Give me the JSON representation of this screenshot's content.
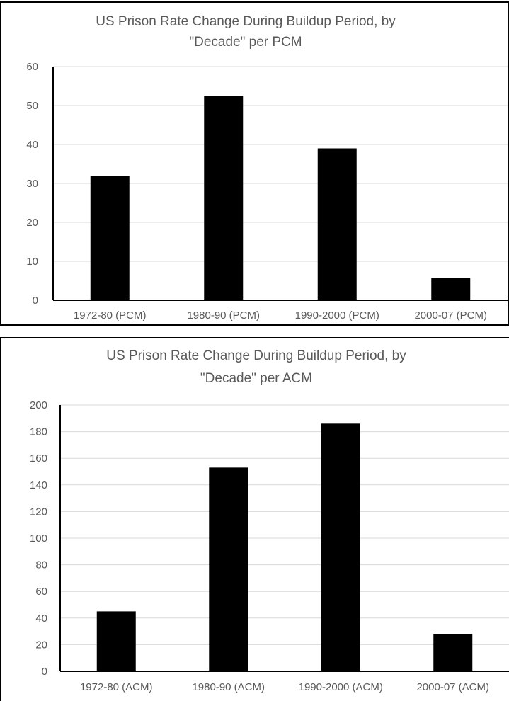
{
  "chart_data": [
    {
      "type": "bar",
      "title": "US Prison Rate Change During Buildup Period, by \"Decade\" per PCM",
      "title_lines": [
        "US Prison Rate Change During Buildup Period, by",
        "\"Decade\" per PCM"
      ],
      "categories": [
        "1972-80 (PCM)",
        "1980-90 (PCM)",
        "1990-2000 (PCM)",
        "2000-07 (PCM)"
      ],
      "values": [
        32,
        52.5,
        39,
        5.7
      ],
      "ylim": [
        0,
        60
      ],
      "yticks": [
        0,
        10,
        20,
        30,
        40,
        50,
        60
      ],
      "xlabel": "",
      "ylabel": "",
      "grid": true,
      "legend": "none",
      "bar_color": "#000000",
      "grid_color": "#d9d9d9"
    },
    {
      "type": "bar",
      "title": "US Prison Rate Change During Buildup Period, by \"Decade\" per ACM",
      "title_lines": [
        "US Prison Rate Change During Buildup Period, by",
        "\"Decade\" per ACM"
      ],
      "categories": [
        "1972-80 (ACM)",
        "1980-90 (ACM)",
        "1990-2000 (ACM)",
        "2000-07 (ACM)"
      ],
      "values": [
        45,
        153,
        186,
        28
      ],
      "ylim": [
        0,
        200
      ],
      "yticks": [
        0,
        20,
        40,
        60,
        80,
        100,
        120,
        140,
        160,
        180,
        200
      ],
      "xlabel": "",
      "ylabel": "",
      "grid": true,
      "legend": "none",
      "bar_color": "#000000",
      "grid_color": "#d9d9d9"
    }
  ]
}
